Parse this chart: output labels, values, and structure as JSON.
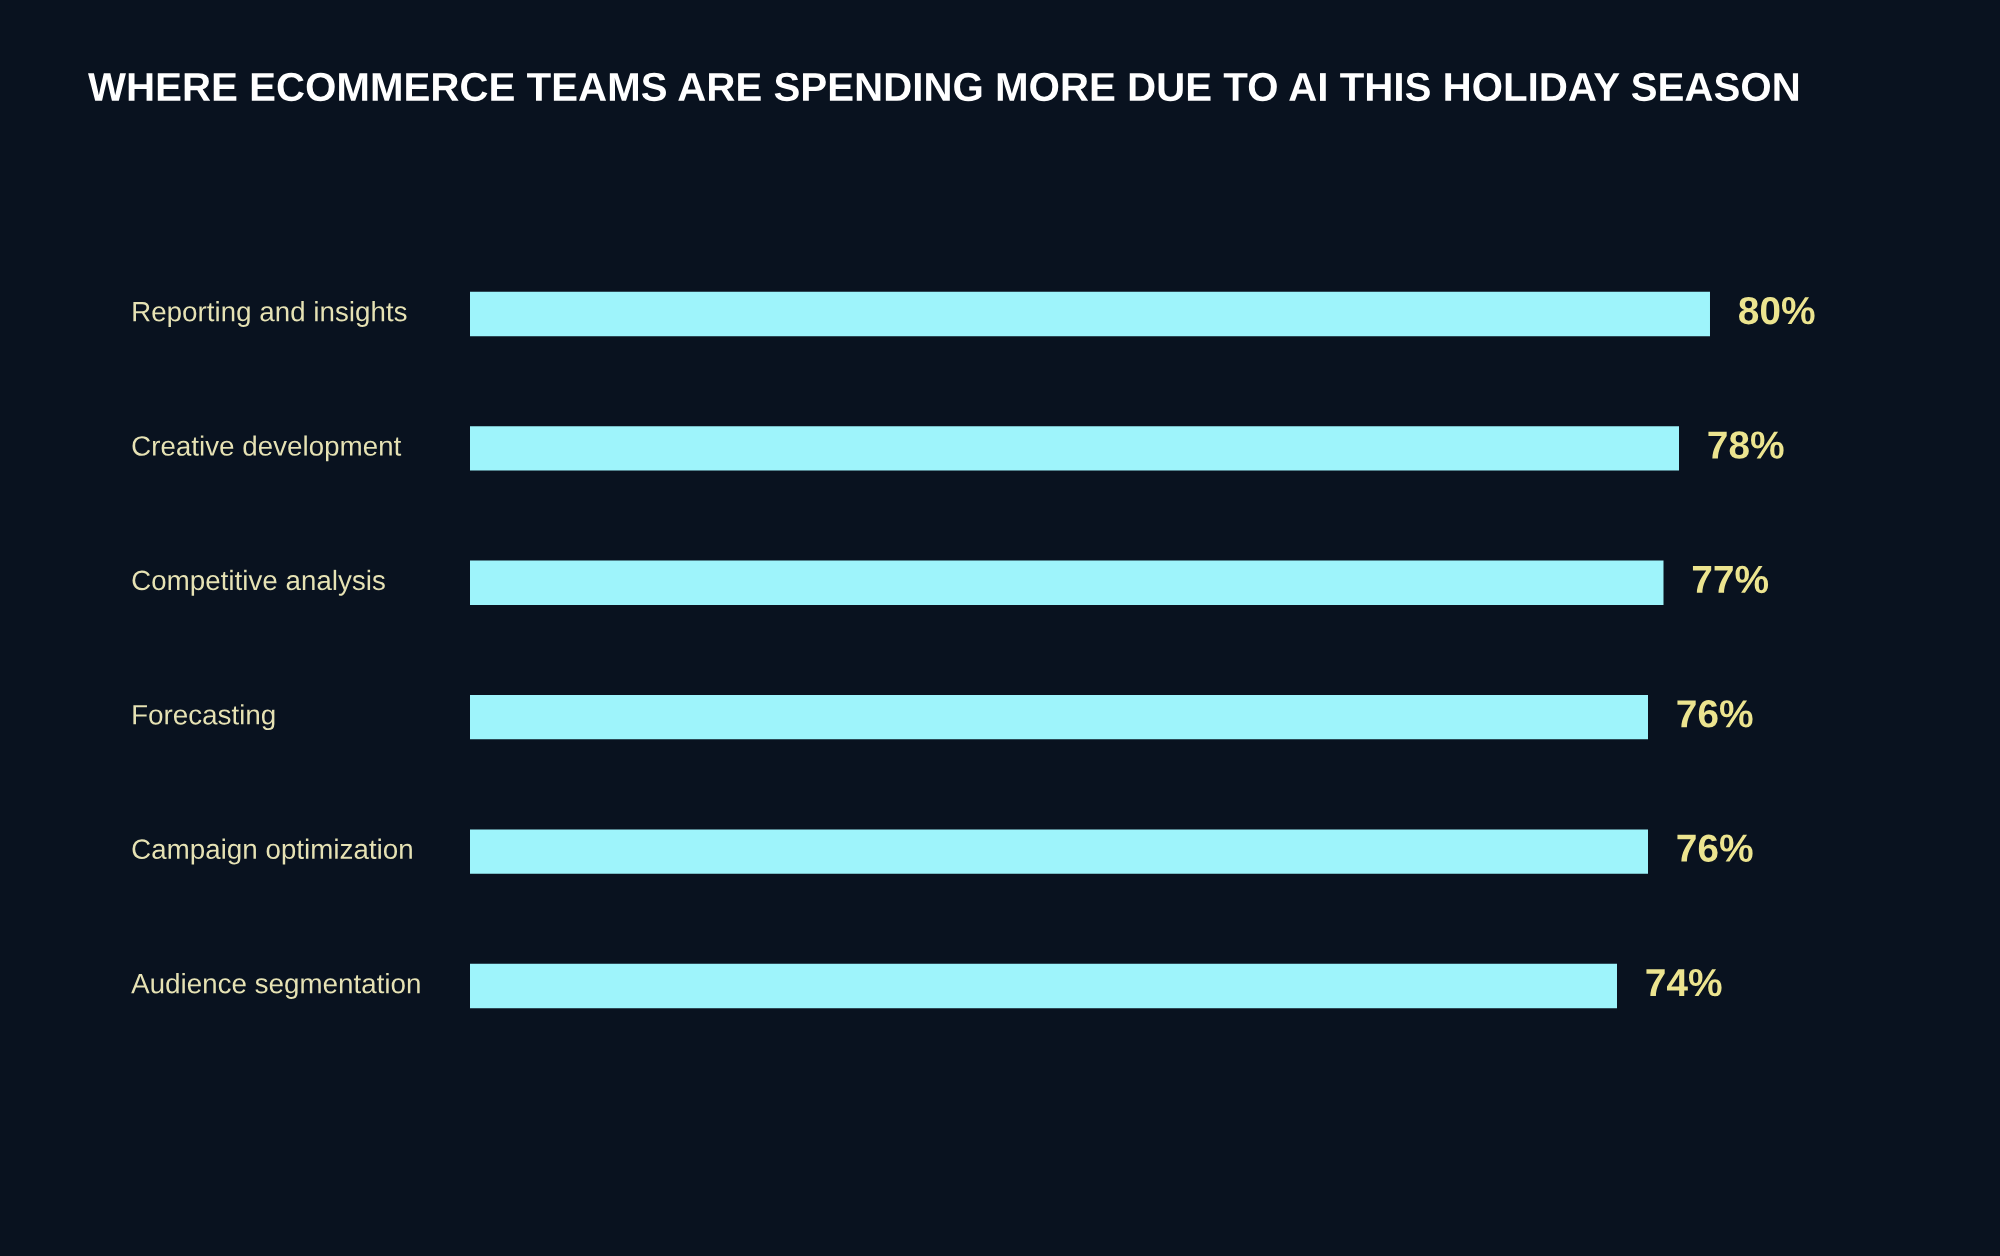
{
  "chart_data": {
    "type": "bar",
    "orientation": "horizontal",
    "title": "WHERE ECOMMERCE TEAMS ARE SPENDING MORE DUE TO AI THIS HOLIDAY SEASON",
    "categories": [
      "Reporting and insights",
      "Creative development",
      "Competitive analysis",
      "Forecasting",
      "Campaign optimization",
      "Audience segmentation"
    ],
    "values": [
      80,
      78,
      77,
      76,
      76,
      74
    ],
    "value_labels": [
      "80%",
      "78%",
      "77%",
      "76%",
      "76%",
      "74%"
    ],
    "color": "#9ef4fb",
    "tick_labels": "y"
  }
}
